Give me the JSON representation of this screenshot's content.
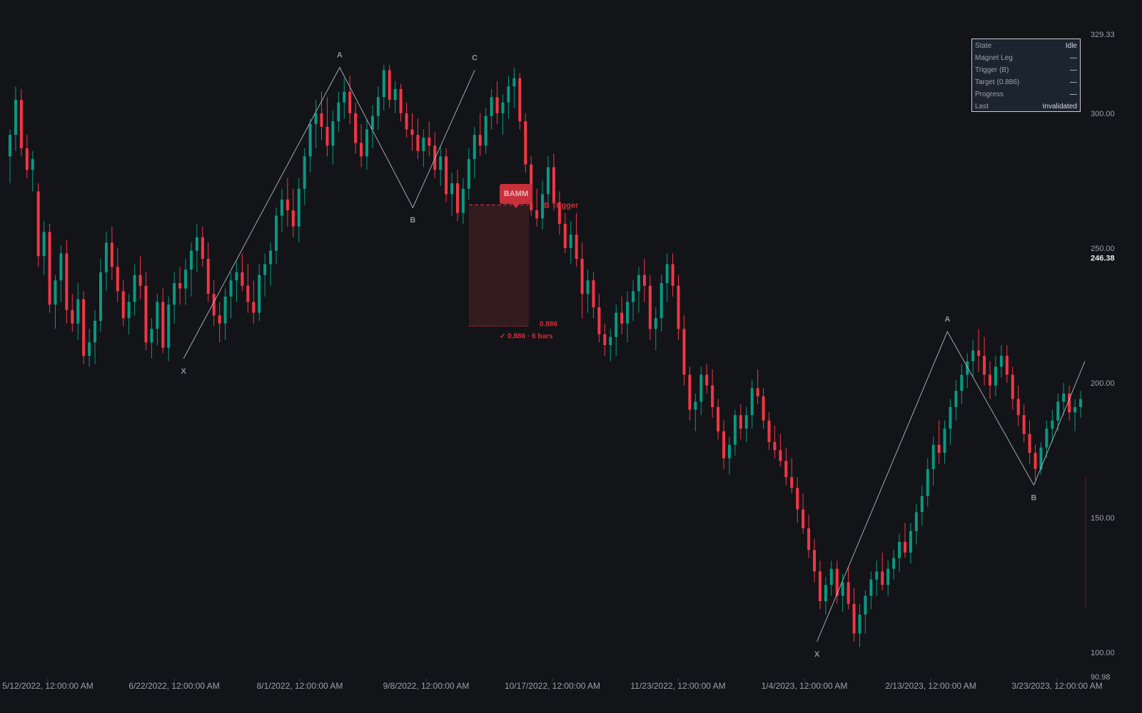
{
  "chart_data": {
    "type": "candlestick",
    "title": "",
    "xlabel": "",
    "ylabel": "",
    "ylim": [
      90.98,
      329.33
    ],
    "y_axis_position": "right",
    "y_ticks": [
      100,
      150,
      200,
      250,
      300
    ],
    "y_tick_labels": [
      "100.00",
      "150.00",
      "200.00",
      "250.00",
      "300.00"
    ],
    "y_min_label": "90.98",
    "y_max_label": "329.33",
    "current_price_label": "246.38",
    "x_ticks": [
      "5/12/2022, 12:00:00 AM",
      "6/22/2022, 12:00:00 AM",
      "8/1/2022, 12:00:00 AM",
      "9/8/2022, 12:00:00 AM",
      "10/17/2022, 12:00:00 AM",
      "11/23/2022, 12:00:00 AM",
      "1/4/2023, 12:00:00 AM",
      "2/13/2023, 12:00:00 AM",
      "3/23/2023, 12:00:00 AM"
    ],
    "grid": false,
    "colors": {
      "up": "#089981",
      "down": "#f23645",
      "pattern_line": "#b2b5be",
      "background": "#131418",
      "box_fill": "#3a1c20",
      "accent": "#c9303a"
    },
    "candles": [
      [
        284,
        294,
        274,
        292
      ],
      [
        292,
        310,
        286,
        305
      ],
      [
        305,
        309,
        284,
        287
      ],
      [
        287,
        292,
        276,
        279
      ],
      [
        279,
        286,
        271,
        283
      ],
      [
        271,
        274,
        243,
        247
      ],
      [
        247,
        260,
        240,
        256
      ],
      [
        256,
        259,
        226,
        229
      ],
      [
        229,
        240,
        220,
        238
      ],
      [
        238,
        251,
        230,
        248
      ],
      [
        248,
        253,
        222,
        227
      ],
      [
        227,
        233,
        219,
        222
      ],
      [
        222,
        237,
        216,
        231
      ],
      [
        231,
        234,
        207,
        210
      ],
      [
        210,
        220,
        206,
        215
      ],
      [
        215,
        227,
        207,
        223
      ],
      [
        223,
        246,
        219,
        241
      ],
      [
        241,
        256,
        234,
        252
      ],
      [
        252,
        258,
        238,
        243
      ],
      [
        243,
        250,
        230,
        234
      ],
      [
        234,
        238,
        221,
        224
      ],
      [
        224,
        233,
        218,
        230
      ],
      [
        230,
        244,
        225,
        240
      ],
      [
        240,
        247,
        231,
        236
      ],
      [
        236,
        241,
        212,
        215
      ],
      [
        215,
        224,
        209,
        220
      ],
      [
        220,
        233,
        214,
        230
      ],
      [
        230,
        235,
        211,
        213
      ],
      [
        213,
        232,
        208,
        229
      ],
      [
        229,
        241,
        222,
        237
      ],
      [
        237,
        243,
        229,
        235
      ],
      [
        235,
        246,
        229,
        242
      ],
      [
        242,
        252,
        232,
        249
      ],
      [
        249,
        259,
        241,
        254
      ],
      [
        254,
        258,
        243,
        246
      ],
      [
        246,
        252,
        230,
        233
      ],
      [
        233,
        238,
        221,
        225
      ],
      [
        225,
        230,
        215,
        222
      ],
      [
        222,
        235,
        216,
        232
      ],
      [
        232,
        241,
        224,
        238
      ],
      [
        238,
        245,
        230,
        241
      ],
      [
        241,
        248,
        234,
        236
      ],
      [
        236,
        244,
        226,
        230
      ],
      [
        230,
        238,
        222,
        226
      ],
      [
        226,
        244,
        223,
        240
      ],
      [
        240,
        248,
        232,
        244
      ],
      [
        244,
        252,
        236,
        249
      ],
      [
        249,
        265,
        244,
        262
      ],
      [
        262,
        272,
        256,
        268
      ],
      [
        268,
        276,
        258,
        264
      ],
      [
        264,
        272,
        254,
        258
      ],
      [
        258,
        276,
        252,
        272
      ],
      [
        272,
        287,
        266,
        284
      ],
      [
        284,
        298,
        278,
        296
      ],
      [
        296,
        305,
        287,
        300
      ],
      [
        300,
        308,
        290,
        295
      ],
      [
        295,
        306,
        284,
        288
      ],
      [
        288,
        301,
        281,
        297
      ],
      [
        297,
        308,
        293,
        304
      ],
      [
        304,
        313,
        298,
        308
      ],
      [
        308,
        314,
        296,
        300
      ],
      [
        300,
        304,
        285,
        289
      ],
      [
        289,
        296,
        280,
        284
      ],
      [
        284,
        298,
        279,
        294
      ],
      [
        294,
        303,
        287,
        299
      ],
      [
        299,
        310,
        294,
        306
      ],
      [
        306,
        318,
        301,
        316
      ],
      [
        316,
        318,
        302,
        305
      ],
      [
        305,
        312,
        300,
        309
      ],
      [
        309,
        311,
        297,
        300
      ],
      [
        300,
        304,
        291,
        294
      ],
      [
        294,
        300,
        286,
        292
      ],
      [
        292,
        298,
        283,
        286
      ],
      [
        286,
        294,
        280,
        291
      ],
      [
        291,
        297,
        284,
        288
      ],
      [
        288,
        293,
        276,
        279
      ],
      [
        279,
        288,
        273,
        284
      ],
      [
        284,
        287,
        267,
        270
      ],
      [
        270,
        278,
        262,
        274
      ],
      [
        274,
        279,
        260,
        263
      ],
      [
        263,
        276,
        259,
        272
      ],
      [
        272,
        287,
        268,
        283
      ],
      [
        283,
        295,
        276,
        292
      ],
      [
        292,
        300,
        284,
        288
      ],
      [
        288,
        302,
        285,
        299
      ],
      [
        299,
        309,
        294,
        306
      ],
      [
        306,
        312,
        296,
        300
      ],
      [
        300,
        307,
        292,
        304
      ],
      [
        304,
        314,
        298,
        310
      ],
      [
        310,
        317,
        302,
        313
      ],
      [
        313,
        315,
        294,
        297
      ],
      [
        297,
        300,
        278,
        281
      ],
      [
        281,
        284,
        262,
        264
      ],
      [
        264,
        272,
        258,
        261
      ],
      [
        261,
        275,
        257,
        270
      ],
      [
        270,
        284,
        265,
        280
      ],
      [
        280,
        285,
        264,
        267
      ],
      [
        267,
        271,
        255,
        259
      ],
      [
        259,
        263,
        248,
        250
      ],
      [
        250,
        260,
        244,
        255
      ],
      [
        255,
        263,
        243,
        246
      ],
      [
        246,
        252,
        224,
        233
      ],
      [
        233,
        242,
        226,
        238
      ],
      [
        238,
        241,
        224,
        228
      ],
      [
        228,
        233,
        215,
        218
      ],
      [
        218,
        222,
        210,
        214
      ],
      [
        214,
        220,
        208,
        217
      ],
      [
        217,
        229,
        210,
        226
      ],
      [
        226,
        232,
        218,
        222
      ],
      [
        222,
        234,
        215,
        230
      ],
      [
        230,
        238,
        223,
        234
      ],
      [
        234,
        243,
        226,
        240
      ],
      [
        240,
        246,
        230,
        236
      ],
      [
        236,
        240,
        216,
        220
      ],
      [
        220,
        228,
        212,
        224
      ],
      [
        224,
        240,
        219,
        237
      ],
      [
        237,
        248,
        230,
        244
      ],
      [
        244,
        248,
        232,
        236
      ],
      [
        236,
        240,
        216,
        220
      ],
      [
        220,
        225,
        199,
        203
      ],
      [
        203,
        206,
        186,
        190
      ],
      [
        190,
        196,
        182,
        193
      ],
      [
        193,
        206,
        188,
        203
      ],
      [
        203,
        207,
        196,
        199
      ],
      [
        199,
        205,
        187,
        191
      ],
      [
        191,
        194,
        179,
        182
      ],
      [
        182,
        186,
        168,
        172
      ],
      [
        172,
        180,
        166,
        177
      ],
      [
        177,
        190,
        173,
        188
      ],
      [
        188,
        192,
        179,
        183
      ],
      [
        183,
        191,
        178,
        188
      ],
      [
        188,
        201,
        183,
        198
      ],
      [
        198,
        205,
        192,
        195
      ],
      [
        195,
        198,
        183,
        186
      ],
      [
        186,
        189,
        175,
        178
      ],
      [
        178,
        184,
        172,
        175
      ],
      [
        175,
        181,
        169,
        171
      ],
      [
        171,
        176,
        162,
        165
      ],
      [
        165,
        172,
        159,
        161
      ],
      [
        161,
        165,
        148,
        153
      ],
      [
        153,
        159,
        144,
        146
      ],
      [
        146,
        151,
        135,
        138
      ],
      [
        138,
        142,
        126,
        130
      ],
      [
        130,
        134,
        116,
        119
      ],
      [
        119,
        128,
        114,
        125
      ],
      [
        125,
        134,
        121,
        131
      ],
      [
        131,
        134,
        118,
        121
      ],
      [
        121,
        129,
        115,
        126
      ],
      [
        126,
        132,
        116,
        118
      ],
      [
        118,
        124,
        104,
        107
      ],
      [
        107,
        118,
        102,
        114
      ],
      [
        114,
        123,
        107,
        121
      ],
      [
        121,
        130,
        116,
        127
      ],
      [
        127,
        134,
        121,
        130
      ],
      [
        130,
        137,
        123,
        125
      ],
      [
        125,
        134,
        121,
        131
      ],
      [
        131,
        138,
        127,
        135
      ],
      [
        135,
        144,
        130,
        141
      ],
      [
        141,
        148,
        135,
        137
      ],
      [
        137,
        148,
        133,
        145
      ],
      [
        145,
        155,
        140,
        152
      ],
      [
        152,
        162,
        147,
        158
      ],
      [
        158,
        172,
        154,
        168
      ],
      [
        168,
        180,
        162,
        177
      ],
      [
        177,
        186,
        170,
        174
      ],
      [
        174,
        186,
        170,
        183
      ],
      [
        183,
        194,
        177,
        191
      ],
      [
        191,
        201,
        186,
        197
      ],
      [
        197,
        207,
        192,
        203
      ],
      [
        203,
        211,
        198,
        208
      ],
      [
        208,
        216,
        202,
        212
      ],
      [
        212,
        220,
        204,
        210
      ],
      [
        210,
        217,
        199,
        203
      ],
      [
        203,
        208,
        194,
        199
      ],
      [
        199,
        210,
        195,
        206
      ],
      [
        206,
        214,
        202,
        210
      ],
      [
        210,
        214,
        200,
        203
      ],
      [
        203,
        206,
        190,
        194
      ],
      [
        194,
        199,
        184,
        188
      ],
      [
        188,
        192,
        178,
        181
      ],
      [
        181,
        186,
        170,
        174
      ],
      [
        174,
        177,
        164,
        168
      ],
      [
        168,
        178,
        166,
        176
      ],
      [
        176,
        186,
        172,
        183
      ],
      [
        183,
        190,
        178,
        186
      ],
      [
        186,
        196,
        182,
        193
      ],
      [
        193,
        200,
        188,
        196
      ],
      [
        196,
        199,
        186,
        189
      ],
      [
        189,
        194,
        182,
        191
      ],
      [
        191,
        197,
        187,
        194
      ]
    ],
    "patterns": [
      {
        "points": [
          {
            "label": "X",
            "date": "6/25/2022",
            "price": 209
          },
          {
            "label": "A",
            "date": "8/13/2022",
            "price": 317
          },
          {
            "label": "B",
            "date": "9/4/2022",
            "price": 265
          },
          {
            "label": "C",
            "date": "9/23/2022",
            "price": 316
          }
        ]
      },
      {
        "points": [
          {
            "label": "X",
            "date": "1/8/2023",
            "price": 104
          },
          {
            "label": "A",
            "date": "2/18/2023",
            "price": 219
          },
          {
            "label": "B",
            "date": "3/16/2023",
            "price": 162
          }
        ]
      }
    ],
    "trigger_level": 266,
    "target_level": 221,
    "annotations": {
      "badge": "BAMM",
      "trigger_label": "B Trigger",
      "target_label": "✓ 0.886 · 6 bars",
      "target_level_label": "0.886"
    }
  },
  "info_panel": {
    "rows": [
      {
        "label": "State",
        "value": "Idle"
      },
      {
        "label": "Magnet Leg",
        "value": "—"
      },
      {
        "label": "Trigger (B)",
        "value": "—"
      },
      {
        "label": "Target (0.886)",
        "value": "—"
      },
      {
        "label": "Progress",
        "value": "—"
      },
      {
        "label": "Last",
        "value": "Invalidated"
      }
    ]
  }
}
